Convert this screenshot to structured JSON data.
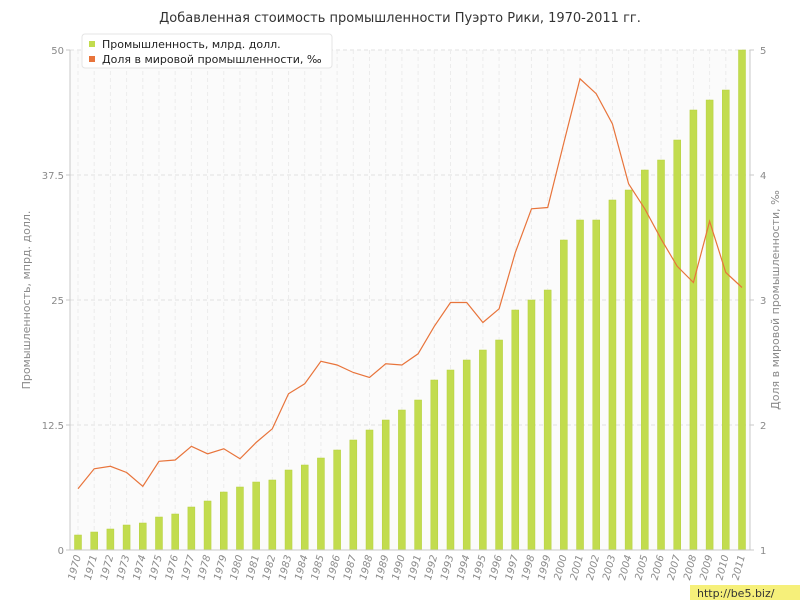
{
  "chart_data": {
    "type": "bar",
    "title": "Добавленная стоимость промышленности Пуэрто Рики, 1970-2011 гг.",
    "ylabel_left": "Промышленность, мпрд. долл.",
    "ylabel_right": "Доля в мировой промышленности, ‰",
    "ylim_left": [
      0,
      50
    ],
    "ylim_right": [
      1,
      5
    ],
    "yticks_left": [
      "0",
      "12.5",
      "25",
      "37.5",
      "50"
    ],
    "yticks_right": [
      "1",
      "2",
      "3",
      "4",
      "5"
    ],
    "grid": true,
    "legend_position": "top-left",
    "categories": [
      "1970",
      "1971",
      "1972",
      "1973",
      "1974",
      "1975",
      "1976",
      "1977",
      "1978",
      "1979",
      "1980",
      "1981",
      "1982",
      "1983",
      "1984",
      "1985",
      "1986",
      "1987",
      "1988",
      "1989",
      "1990",
      "1991",
      "1992",
      "1993",
      "1994",
      "1995",
      "1996",
      "1997",
      "1998",
      "1999",
      "2000",
      "2001",
      "2002",
      "2003",
      "2004",
      "2005",
      "2006",
      "2007",
      "2008",
      "2009",
      "2010",
      "2011"
    ],
    "series": [
      {
        "name": "Промышленность, млрд. долл.",
        "type": "bar",
        "axis": "left",
        "color": "#c2dc4e",
        "values": [
          1.5,
          1.8,
          2.1,
          2.5,
          2.7,
          3.3,
          3.6,
          4.3,
          4.9,
          5.8,
          6.3,
          6.8,
          7.0,
          8.0,
          8.5,
          9.2,
          10.0,
          11.0,
          12.0,
          13.0,
          14.0,
          15.0,
          17.0,
          18.0,
          19.0,
          20.0,
          21.0,
          24.0,
          25.0,
          26.0,
          31.0,
          33.0,
          33.0,
          35.0,
          36.0,
          38.0,
          39.0,
          41.0,
          44.0,
          45.0,
          46.0,
          50.0
        ]
      },
      {
        "name": "Доля в мировой промышленности, ‰",
        "type": "line",
        "axis": "right",
        "color": "#e8743b",
        "values": [
          1.49,
          1.65,
          1.67,
          1.62,
          1.51,
          1.71,
          1.72,
          1.83,
          1.77,
          1.81,
          1.73,
          1.86,
          1.97,
          2.25,
          2.33,
          2.51,
          2.48,
          2.42,
          2.38,
          2.49,
          2.48,
          2.57,
          2.79,
          2.98,
          2.98,
          2.82,
          2.93,
          3.38,
          3.73,
          3.74,
          4.26,
          4.77,
          4.65,
          4.41,
          3.93,
          3.73,
          3.49,
          3.27,
          3.14,
          3.63,
          3.22,
          3.1
        ]
      }
    ]
  },
  "watermark": "http://be5.biz/"
}
